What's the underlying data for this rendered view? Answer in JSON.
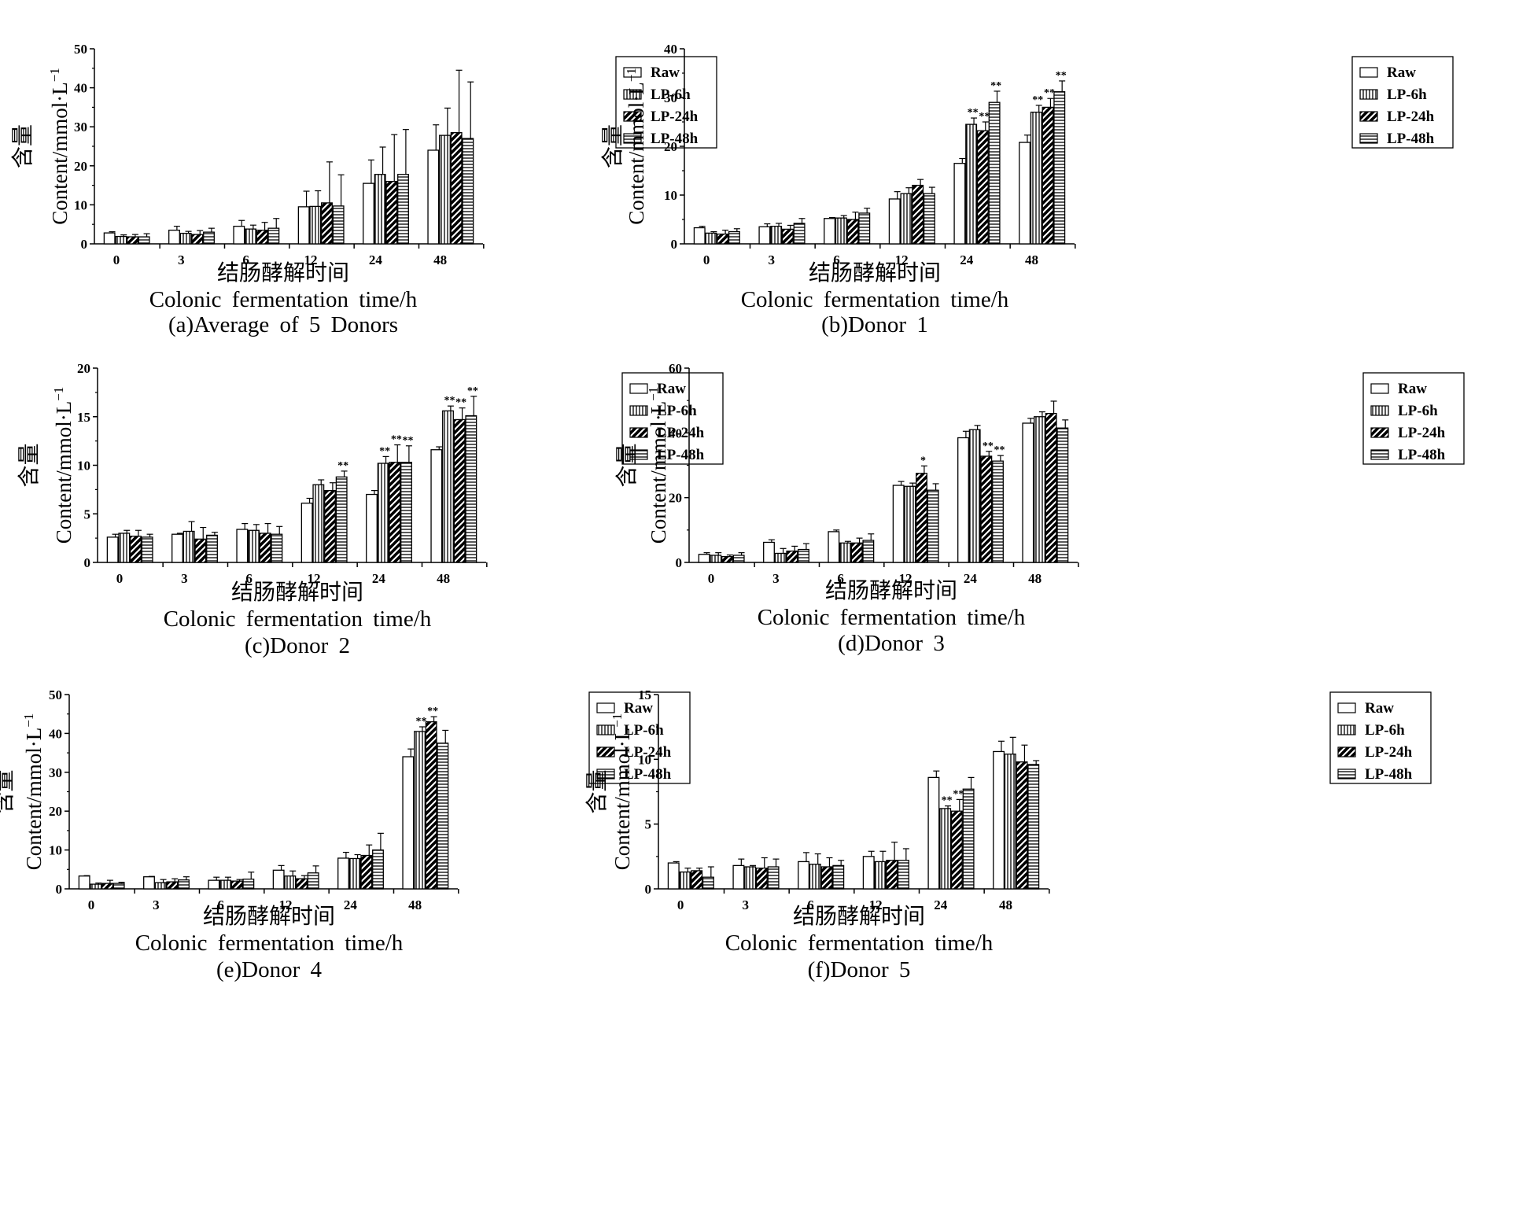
{
  "common": {
    "xlabel_cn": "结肠酵解时间",
    "xlabel_en": "Colonic fermentation time/h",
    "ylabel_cn": "含量",
    "ylabel_en": "Content/mmol·L",
    "ylabel_sup": "−1",
    "series_names": [
      "Raw",
      "LP-6h",
      "LP-24h",
      "LP-48h"
    ]
  },
  "chart_data": [
    {
      "type": "bar",
      "caption": "(a)Average of 5 Donors",
      "categories": [
        "0",
        "3",
        "6",
        "12",
        "24",
        "48"
      ],
      "ylim": [
        0,
        50
      ],
      "yticks": [
        0,
        10,
        20,
        30,
        40,
        50
      ],
      "legend": "top-right",
      "series": [
        {
          "name": "Raw",
          "values": [
            2.8,
            3.5,
            4.5,
            9.5,
            15.5,
            24.0
          ],
          "errors": [
            0.3,
            1.0,
            1.5,
            4.0,
            6.0,
            6.5
          ],
          "sig": [
            "",
            "",
            "",
            "",
            "",
            ""
          ]
        },
        {
          "name": "LP-6h",
          "values": [
            1.9,
            2.7,
            3.8,
            9.6,
            17.8,
            27.8
          ],
          "errors": [
            0.4,
            0.5,
            1.0,
            4.0,
            7.0,
            7.0
          ],
          "sig": [
            "",
            "",
            "",
            "",
            "",
            ""
          ]
        },
        {
          "name": "LP-24h",
          "values": [
            1.8,
            2.4,
            3.5,
            10.5,
            16.0,
            28.5
          ],
          "errors": [
            0.6,
            1.0,
            2.0,
            10.5,
            12.0,
            16.0
          ],
          "sig": [
            "",
            "",
            "",
            "",
            "",
            ""
          ]
        },
        {
          "name": "LP-48h",
          "values": [
            1.8,
            3.0,
            4.0,
            9.7,
            17.8,
            27.0
          ],
          "errors": [
            0.8,
            1.0,
            2.5,
            8.0,
            11.5,
            14.5
          ],
          "sig": [
            "",
            "",
            "",
            "",
            "",
            ""
          ]
        }
      ]
    },
    {
      "type": "bar",
      "caption": "(b)Donor 1",
      "categories": [
        "0",
        "3",
        "6",
        "12",
        "24",
        "48"
      ],
      "ylim": [
        0,
        40
      ],
      "yticks": [
        0,
        10,
        20,
        30,
        40
      ],
      "legend": "top-right",
      "series": [
        {
          "name": "Raw",
          "values": [
            3.3,
            3.5,
            5.2,
            9.2,
            16.5,
            20.8
          ],
          "errors": [
            0.3,
            0.6,
            0.2,
            1.5,
            1.0,
            1.5
          ],
          "sig": [
            "",
            "",
            "",
            "",
            "",
            ""
          ]
        },
        {
          "name": "LP-6h",
          "values": [
            2.2,
            3.6,
            5.3,
            10.3,
            24.5,
            27.0
          ],
          "errors": [
            0.3,
            0.6,
            0.5,
            1.2,
            1.3,
            1.4
          ],
          "sig": [
            "",
            "",
            "",
            "",
            "**",
            "**"
          ]
        },
        {
          "name": "LP-24h",
          "values": [
            2.0,
            3.0,
            5.0,
            12.0,
            23.2,
            28.0
          ],
          "errors": [
            0.8,
            0.8,
            1.5,
            1.2,
            1.8,
            1.8
          ],
          "sig": [
            "",
            "",
            "",
            "",
            "**",
            "**"
          ]
        },
        {
          "name": "LP-48h",
          "values": [
            2.5,
            4.2,
            6.3,
            10.3,
            29.0,
            31.2
          ],
          "errors": [
            0.6,
            1.0,
            1.0,
            1.3,
            2.3,
            2.2
          ],
          "sig": [
            "",
            "",
            "",
            "",
            "**",
            "**"
          ]
        }
      ]
    },
    {
      "type": "bar",
      "caption": "(c)Donor 2",
      "categories": [
        "0",
        "3",
        "6",
        "12",
        "24",
        "48"
      ],
      "ylim": [
        0,
        20
      ],
      "yticks": [
        0,
        5,
        10,
        15,
        20
      ],
      "legend": "top-right",
      "series": [
        {
          "name": "Raw",
          "values": [
            2.6,
            2.9,
            3.4,
            6.1,
            7.0,
            11.6
          ],
          "errors": [
            0.3,
            0.1,
            0.6,
            0.5,
            0.4,
            0.3
          ],
          "sig": [
            "",
            "",
            "",
            "",
            "",
            ""
          ]
        },
        {
          "name": "LP-6h",
          "values": [
            3.0,
            3.2,
            3.3,
            8.0,
            10.2,
            15.6
          ],
          "errors": [
            0.3,
            1.0,
            0.6,
            0.5,
            0.7,
            0.5
          ],
          "sig": [
            "",
            "",
            "",
            "",
            "**",
            "**"
          ]
        },
        {
          "name": "LP-24h",
          "values": [
            2.7,
            2.4,
            3.0,
            7.4,
            10.3,
            14.7
          ],
          "errors": [
            0.6,
            1.2,
            1.0,
            0.8,
            1.8,
            1.2
          ],
          "sig": [
            "",
            "",
            "",
            "",
            "**",
            "**"
          ]
        },
        {
          "name": "LP-48h",
          "values": [
            2.6,
            2.8,
            2.9,
            8.8,
            10.3,
            15.1
          ],
          "errors": [
            0.3,
            0.3,
            0.8,
            0.6,
            1.7,
            2.0
          ],
          "sig": [
            "",
            "",
            "",
            "**",
            "**",
            "**"
          ]
        }
      ]
    },
    {
      "type": "bar",
      "caption": "(d)Donor 3",
      "categories": [
        "0",
        "3",
        "6",
        "12",
        "24",
        "48"
      ],
      "ylim": [
        0,
        60
      ],
      "yticks": [
        0,
        20,
        40,
        60
      ],
      "legend": "top-right",
      "series": [
        {
          "name": "Raw",
          "values": [
            2.5,
            6.2,
            9.5,
            23.8,
            38.5,
            43.0
          ],
          "errors": [
            0.5,
            0.8,
            0.5,
            1.2,
            2.0,
            1.5
          ],
          "sig": [
            "",
            "",
            "",
            "",
            "",
            ""
          ]
        },
        {
          "name": "LP-6h",
          "values": [
            2.2,
            2.8,
            6.0,
            23.5,
            41.0,
            45.0
          ],
          "errors": [
            0.8,
            1.5,
            0.5,
            1.0,
            1.3,
            1.5
          ],
          "sig": [
            "",
            "",
            "",
            "",
            "",
            ""
          ]
        },
        {
          "name": "LP-24h",
          "values": [
            1.8,
            3.5,
            6.0,
            27.5,
            32.8,
            46.0
          ],
          "errors": [
            0.5,
            1.5,
            1.5,
            2.3,
            1.5,
            3.8
          ],
          "sig": [
            "",
            "",
            "",
            "*",
            "**",
            ""
          ]
        },
        {
          "name": "LP-48h",
          "values": [
            2.2,
            4.0,
            6.8,
            22.3,
            31.3,
            41.5
          ],
          "errors": [
            0.8,
            1.8,
            2.0,
            2.0,
            1.7,
            2.5
          ],
          "sig": [
            "",
            "",
            "",
            "",
            "**",
            ""
          ]
        }
      ]
    },
    {
      "type": "bar",
      "caption": "(e)Donor 4",
      "categories": [
        "0",
        "3",
        "6",
        "12",
        "24",
        "48"
      ],
      "ylim": [
        0,
        50
      ],
      "yticks": [
        0,
        10,
        20,
        30,
        40,
        50
      ],
      "legend": "top-right",
      "series": [
        {
          "name": "Raw",
          "values": [
            3.3,
            3.1,
            2.2,
            4.8,
            7.9,
            34.0
          ],
          "errors": [
            0.1,
            0.1,
            0.8,
            1.2,
            1.5,
            2.0
          ],
          "sig": [
            "",
            "",
            "",
            "",
            "",
            ""
          ]
        },
        {
          "name": "LP-6h",
          "values": [
            1.2,
            1.6,
            2.2,
            3.3,
            7.8,
            40.5
          ],
          "errors": [
            0.3,
            0.8,
            0.8,
            1.3,
            1.0,
            1.2
          ],
          "sig": [
            "",
            "",
            "",
            "",
            "",
            "**"
          ]
        },
        {
          "name": "LP-24h",
          "values": [
            1.4,
            1.8,
            2.0,
            2.6,
            8.6,
            43.0
          ],
          "errors": [
            0.8,
            0.8,
            0.4,
            0.8,
            2.7,
            1.3
          ],
          "sig": [
            "",
            "",
            "",
            "",
            "",
            "**"
          ]
        },
        {
          "name": "LP-48h",
          "values": [
            1.4,
            2.3,
            2.5,
            4.1,
            10.0,
            37.5
          ],
          "errors": [
            0.3,
            0.8,
            1.8,
            1.8,
            4.3,
            3.3
          ],
          "sig": [
            "",
            "",
            "",
            "",
            "",
            ""
          ]
        }
      ]
    },
    {
      "type": "bar",
      "caption": "(f)Donor 5",
      "categories": [
        "0",
        "3",
        "6",
        "12",
        "24",
        "48"
      ],
      "ylim": [
        0,
        15
      ],
      "yticks": [
        0,
        5,
        10,
        15
      ],
      "legend": "top-right",
      "series": [
        {
          "name": "Raw",
          "values": [
            2.0,
            1.8,
            2.1,
            2.5,
            8.6,
            10.6
          ],
          "errors": [
            0.1,
            0.5,
            0.7,
            0.4,
            0.5,
            0.8
          ],
          "sig": [
            "",
            "",
            "",
            "",
            "",
            ""
          ]
        },
        {
          "name": "LP-6h",
          "values": [
            1.3,
            1.7,
            1.9,
            2.1,
            6.2,
            10.4
          ],
          "errors": [
            0.3,
            0.1,
            0.8,
            0.8,
            0.2,
            1.3
          ],
          "sig": [
            "",
            "",
            "",
            "",
            "**",
            ""
          ]
        },
        {
          "name": "LP-24h",
          "values": [
            1.4,
            1.6,
            1.7,
            2.2,
            6.0,
            9.8
          ],
          "errors": [
            0.2,
            0.8,
            0.7,
            1.4,
            0.9,
            1.3
          ],
          "sig": [
            "",
            "",
            "",
            "",
            "**",
            ""
          ]
        },
        {
          "name": "LP-48h",
          "values": [
            0.9,
            1.7,
            1.8,
            2.2,
            7.7,
            9.6
          ],
          "errors": [
            0.8,
            0.6,
            0.4,
            0.9,
            0.9,
            0.3
          ],
          "sig": [
            "",
            "",
            "",
            "",
            "",
            ""
          ]
        }
      ]
    }
  ]
}
